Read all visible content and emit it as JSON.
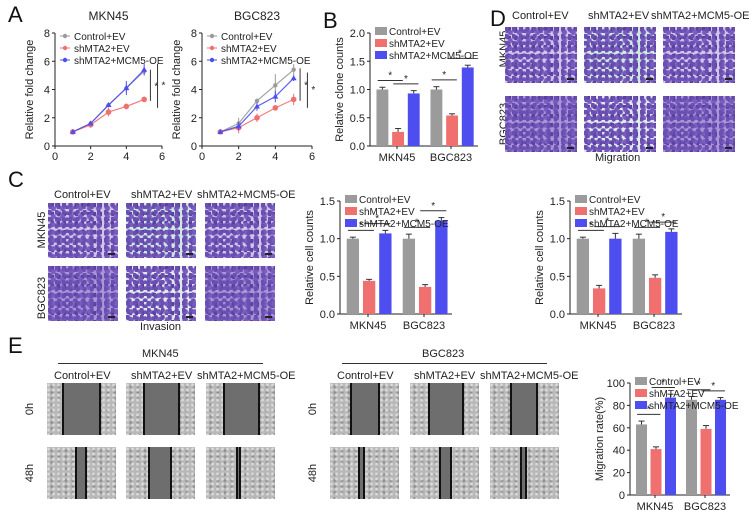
{
  "panels": {
    "A": "A",
    "B": "B",
    "C": "C",
    "D": "D",
    "E": "E"
  },
  "groups": [
    "Control+EV",
    "shMTA2+EV",
    "shMTA2+MCM5-OE"
  ],
  "colors": {
    "control": "#9b9b9b",
    "shMTA2": "#f07070",
    "mcm5": "#4d4df0"
  },
  "cell_lines": [
    "MKN45",
    "BGC823"
  ],
  "row_labels": {
    "mkn45": "MKN45",
    "bgc823": "BGC823",
    "t0": "0h",
    "t48": "48h"
  },
  "captions": {
    "invasion": "Invasion",
    "migration": "Migration"
  },
  "significance": "*",
  "chart_data": [
    {
      "id": "A-MKN45",
      "type": "line",
      "title": "MKN45",
      "xlabel": "",
      "ylabel": "Relative fold change",
      "xlim": [
        0,
        6
      ],
      "ylim": [
        0,
        8
      ],
      "xticks": [
        0,
        2,
        4,
        6
      ],
      "yticks": [
        0,
        2,
        4,
        6,
        8
      ],
      "legend": "top-left",
      "x": [
        1,
        2,
        3,
        4,
        5
      ],
      "series": [
        {
          "name": "Control+EV",
          "values": [
            1.0,
            1.6,
            2.9,
            4.1,
            5.3
          ],
          "err": [
            0.05,
            0.1,
            0.15,
            0.3,
            0.3
          ]
        },
        {
          "name": "shMTA2+EV",
          "values": [
            1.0,
            1.5,
            2.4,
            2.8,
            3.3
          ],
          "err": [
            0.05,
            0.1,
            0.3,
            0.2,
            0.2
          ]
        },
        {
          "name": "shMTA2+MCM5-OE",
          "values": [
            1.0,
            1.6,
            2.9,
            4.1,
            5.4
          ],
          "err": [
            0.05,
            0.1,
            0.15,
            0.5,
            0.4
          ]
        }
      ],
      "annotations": [
        "*",
        "*"
      ]
    },
    {
      "id": "A-BGC823",
      "type": "line",
      "title": "BGC823",
      "xlabel": "",
      "ylabel": "Relative fold change",
      "xlim": [
        0,
        6
      ],
      "ylim": [
        0,
        8
      ],
      "xticks": [
        0,
        2,
        4,
        6
      ],
      "yticks": [
        0,
        2,
        4,
        6,
        8
      ],
      "legend": "top-left",
      "x": [
        1,
        2,
        3,
        4,
        5
      ],
      "series": [
        {
          "name": "Control+EV",
          "values": [
            1.0,
            1.6,
            3.2,
            4.3,
            5.4
          ],
          "err": [
            0.05,
            0.4,
            0.1,
            0.8,
            0.4
          ]
        },
        {
          "name": "shMTA2+EV",
          "values": [
            1.0,
            1.3,
            2.0,
            2.7,
            3.3
          ],
          "err": [
            0.05,
            0.4,
            0.3,
            0.2,
            0.4
          ]
        },
        {
          "name": "shMTA2+MCM5-OE",
          "values": [
            1.0,
            1.4,
            2.8,
            3.5,
            4.8
          ],
          "err": [
            0.05,
            0.3,
            0.3,
            0.4,
            0.2
          ]
        }
      ],
      "annotations": [
        "*",
        "*"
      ]
    },
    {
      "id": "B",
      "type": "bar",
      "title": "",
      "ylabel": "Relative clone counts",
      "categories": [
        "MKN45",
        "BGC823"
      ],
      "ylim": [
        0,
        2.0
      ],
      "yticks": [
        "0.0",
        "0.5",
        "1.0",
        "1.5",
        "2.0"
      ],
      "legend": "top-left",
      "series": [
        {
          "name": "Control+EV",
          "values": [
            1.0,
            1.0
          ],
          "err": [
            0.04,
            0.05
          ]
        },
        {
          "name": "shMTA2+EV",
          "values": [
            0.25,
            0.54
          ],
          "err": [
            0.06,
            0.03
          ]
        },
        {
          "name": "shMTA2+MCM5-OE",
          "values": [
            0.93,
            1.39
          ],
          "err": [
            0.05,
            0.04
          ]
        }
      ],
      "sig_pairs": [
        [
          0,
          0,
          1
        ],
        [
          0,
          1,
          2
        ],
        [
          1,
          0,
          1
        ],
        [
          1,
          1,
          2
        ]
      ]
    },
    {
      "id": "C",
      "type": "bar",
      "title": "",
      "ylabel": "Relative cell counts",
      "categories": [
        "MKN45",
        "BGC823"
      ],
      "ylim": [
        0,
        1.5
      ],
      "yticks": [
        "0.0",
        "0.5",
        "1.0",
        "1.5"
      ],
      "legend": "top-left",
      "series": [
        {
          "name": "Control+EV",
          "values": [
            1.0,
            1.0
          ],
          "err": [
            0.02,
            0.06
          ]
        },
        {
          "name": "shMTA2+EV",
          "values": [
            0.44,
            0.36
          ],
          "err": [
            0.02,
            0.03
          ]
        },
        {
          "name": "shMTA2+MCM5-OE",
          "values": [
            1.07,
            1.24
          ],
          "err": [
            0.04,
            0.04
          ]
        }
      ],
      "sig_pairs": [
        [
          0,
          0,
          1
        ],
        [
          0,
          1,
          2
        ],
        [
          1,
          0,
          1
        ],
        [
          1,
          1,
          2
        ]
      ]
    },
    {
      "id": "D",
      "type": "bar",
      "title": "",
      "ylabel": "Relative cell counts",
      "categories": [
        "MKN45",
        "BGC823"
      ],
      "ylim": [
        0,
        1.5
      ],
      "yticks": [
        "0.0",
        "0.5",
        "1.0",
        "1.5"
      ],
      "legend": "top-left",
      "series": [
        {
          "name": "Control+EV",
          "values": [
            1.0,
            1.0
          ],
          "err": [
            0.02,
            0.06
          ]
        },
        {
          "name": "shMTA2+EV",
          "values": [
            0.34,
            0.48
          ],
          "err": [
            0.04,
            0.04
          ]
        },
        {
          "name": "shMTA2+MCM5-OE",
          "values": [
            1.0,
            1.09
          ],
          "err": [
            0.07,
            0.04
          ]
        }
      ],
      "sig_pairs": [
        [
          0,
          0,
          1
        ],
        [
          0,
          1,
          2
        ],
        [
          1,
          0,
          1
        ],
        [
          1,
          1,
          2
        ]
      ]
    },
    {
      "id": "E",
      "type": "bar",
      "title": "",
      "ylabel": "Migration rate(%)",
      "categories": [
        "MKN45",
        "BGC823"
      ],
      "ylim": [
        0,
        100
      ],
      "yticks": [
        "0",
        "20",
        "40",
        "60",
        "80",
        "100"
      ],
      "legend": "top-left",
      "series": [
        {
          "name": "Control+EV",
          "values": [
            63,
            85
          ],
          "err": [
            3,
            3
          ]
        },
        {
          "name": "shMTA2+EV",
          "values": [
            41,
            59
          ],
          "err": [
            2,
            3
          ]
        },
        {
          "name": "shMTA2+MCM5-OE",
          "values": [
            87,
            85
          ],
          "err": [
            3,
            2
          ]
        }
      ],
      "sig_pairs": [
        [
          0,
          0,
          1
        ],
        [
          0,
          1,
          2
        ],
        [
          1,
          0,
          1
        ],
        [
          1,
          1,
          2
        ]
      ]
    }
  ]
}
